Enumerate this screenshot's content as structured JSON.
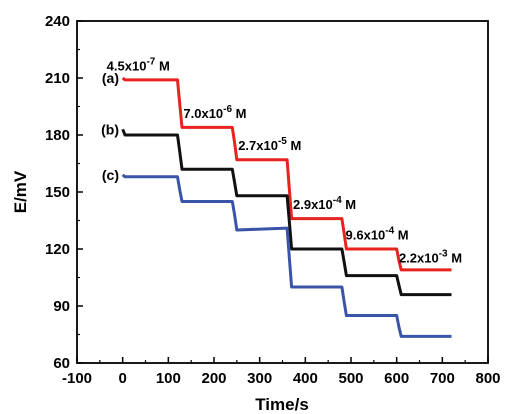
{
  "chart_data": {
    "type": "line",
    "xlabel": "Time/s",
    "ylabel": "E/mV",
    "xlim": [
      -100,
      800
    ],
    "ylim": [
      60,
      240
    ],
    "xticks": [
      -100,
      0,
      100,
      200,
      300,
      400,
      500,
      600,
      700,
      800
    ],
    "yticks": [
      60,
      90,
      120,
      150,
      180,
      210,
      240
    ],
    "grid": false,
    "series": [
      {
        "name": "(a)",
        "color": "#e8231f",
        "x": [
          0,
          5,
          10,
          120,
          125,
          130,
          240,
          245,
          250,
          360,
          365,
          370,
          480,
          485,
          490,
          600,
          605,
          610,
          720
        ],
        "y": [
          210,
          209,
          209,
          209,
          196,
          184,
          184,
          176,
          167,
          167,
          151,
          136,
          136,
          128,
          120,
          120,
          114,
          109,
          109
        ]
      },
      {
        "name": "(b)",
        "color": "#111111",
        "x": [
          0,
          5,
          10,
          120,
          125,
          130,
          240,
          245,
          250,
          360,
          365,
          370,
          480,
          485,
          490,
          600,
          605,
          610,
          720
        ],
        "y": [
          183,
          180,
          180,
          180,
          171,
          162,
          162,
          155,
          148,
          148,
          134,
          120,
          120,
          113,
          106,
          106,
          101,
          96,
          96
        ]
      },
      {
        "name": "(c)",
        "color": "#3a55a8",
        "x": [
          0,
          5,
          10,
          120,
          125,
          130,
          240,
          245,
          250,
          360,
          365,
          370,
          480,
          485,
          490,
          600,
          605,
          610,
          720
        ],
        "y": [
          159,
          158,
          158,
          158,
          151,
          145,
          145,
          138,
          130,
          131,
          115,
          100,
          100,
          92,
          85,
          85,
          79,
          74,
          74
        ]
      }
    ],
    "annotations": [
      {
        "text": "4.5x10",
        "exp": "-7",
        "unit": " M",
        "x": -35,
        "y": 214
      },
      {
        "text": "7.0x10",
        "exp": "-6",
        "unit": " M",
        "x": 133,
        "y": 189
      },
      {
        "text": "2.7x10",
        "exp": "-5",
        "unit": " M",
        "x": 253,
        "y": 172
      },
      {
        "text": "2.9x10",
        "exp": "-4",
        "unit": " M",
        "x": 373,
        "y": 141
      },
      {
        "text": "9.6x10",
        "exp": "-4",
        "unit": " M",
        "x": 488,
        "y": 125
      },
      {
        "text": "2.2x10",
        "exp": "-3",
        "unit": " M",
        "x": 605,
        "y": 113
      }
    ]
  }
}
